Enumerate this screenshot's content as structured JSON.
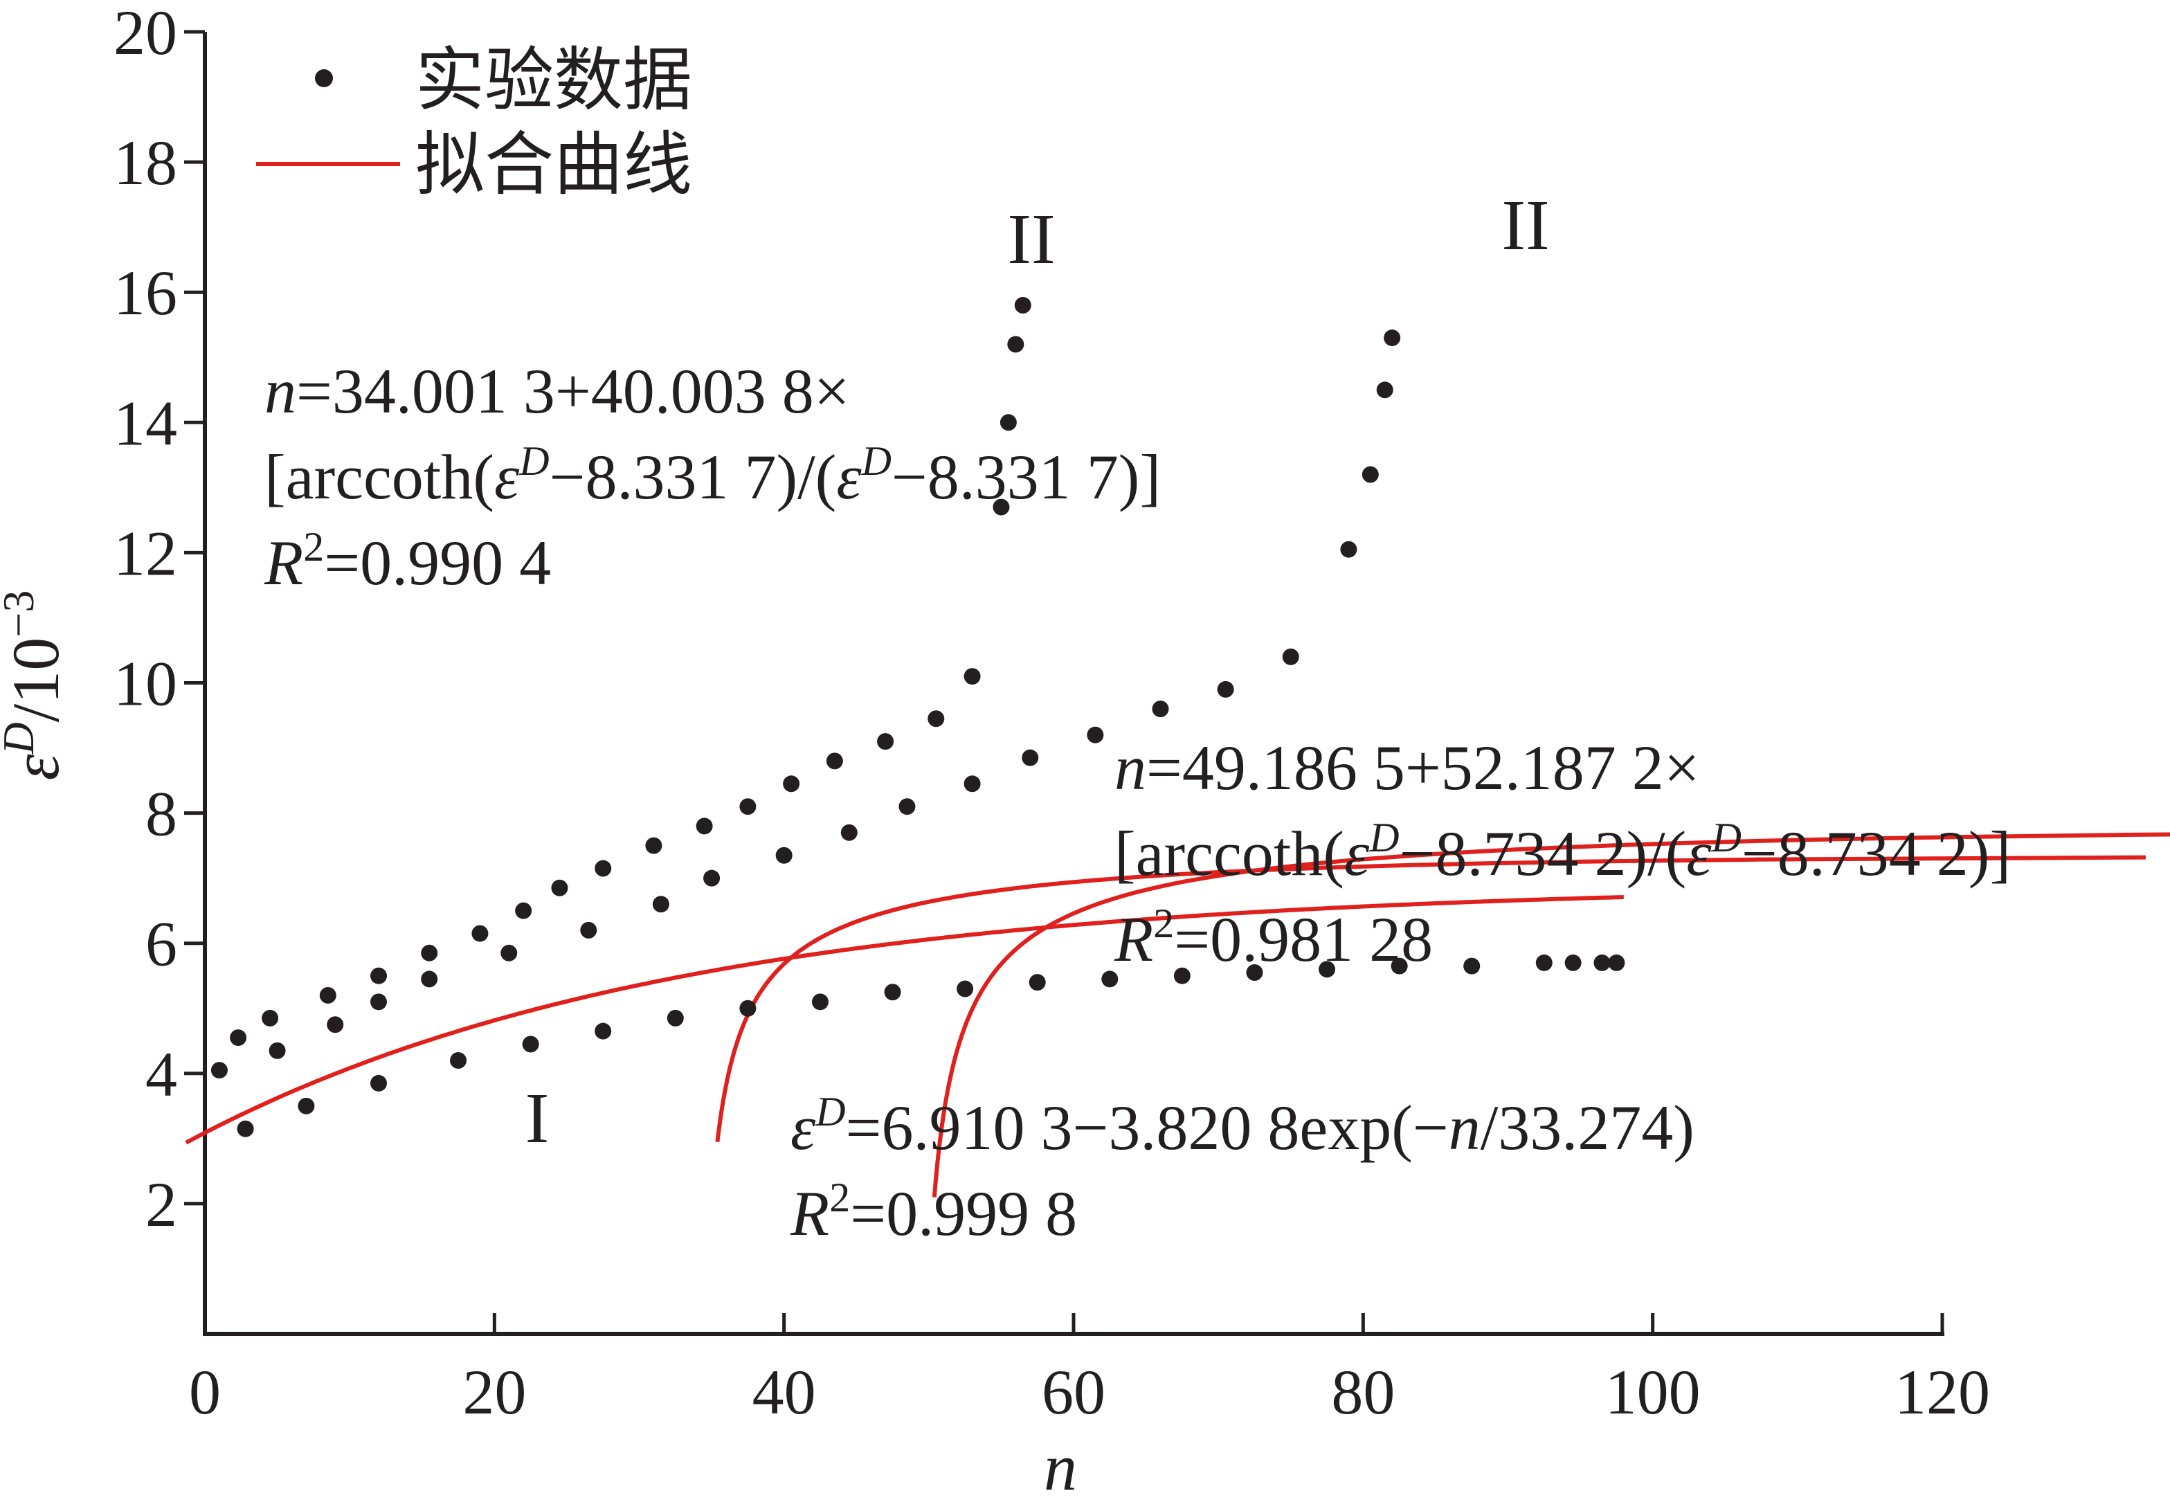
{
  "chart_data": {
    "type": "scatter",
    "xlabel": "n",
    "ylabel": {
      "base": "ε",
      "sup": "D",
      "rest": "/10",
      "rest_sup": "−3"
    },
    "xlim": [
      0,
      120
    ],
    "ylim": [
      0,
      20
    ],
    "xticks": [
      0,
      20,
      40,
      60,
      80,
      100,
      120
    ],
    "yticks": [
      2,
      4,
      6,
      8,
      10,
      12,
      14,
      16,
      18,
      20
    ],
    "grid": false,
    "legend_position": "top-left",
    "legend": {
      "data_label": "实验数据",
      "fit_label": "拟合曲线"
    },
    "colors": {
      "points": "#231f20",
      "fit": "#e0201d",
      "axes": "#231f20"
    },
    "series": [
      {
        "region_label": "II",
        "points": [
          [
            1,
            4.05
          ],
          [
            2.3,
            4.55
          ],
          [
            4.5,
            4.85
          ],
          [
            8.5,
            5.2
          ],
          [
            12,
            5.5
          ],
          [
            15.5,
            5.85
          ],
          [
            19,
            6.15
          ],
          [
            22,
            6.5
          ],
          [
            24.5,
            6.85
          ],
          [
            27.5,
            7.15
          ],
          [
            31,
            7.5
          ],
          [
            34.5,
            7.8
          ],
          [
            37.5,
            8.1
          ],
          [
            40.5,
            8.45
          ],
          [
            43.5,
            8.8
          ],
          [
            47,
            9.1
          ],
          [
            50.5,
            9.45
          ],
          [
            53,
            10.1
          ],
          [
            55,
            12.7
          ],
          [
            55.5,
            14.0
          ],
          [
            56,
            15.2
          ],
          [
            56.5,
            15.8
          ]
        ],
        "fit": {
          "a": 34.0013,
          "b": 40.0038,
          "c": 8.3317,
          "eps_range": [
            2.95,
            15.8
          ]
        }
      },
      {
        "region_label": "II",
        "points": [
          [
            2.8,
            3.15
          ],
          [
            5,
            4.35
          ],
          [
            7,
            3.5
          ],
          [
            9,
            4.75
          ],
          [
            12,
            5.1
          ],
          [
            15.5,
            5.45
          ],
          [
            21,
            5.85
          ],
          [
            26.5,
            6.2
          ],
          [
            31.5,
            6.6
          ],
          [
            35,
            7.0
          ],
          [
            40,
            7.35
          ],
          [
            44.5,
            7.7
          ],
          [
            48.5,
            8.1
          ],
          [
            53,
            8.45
          ],
          [
            57,
            8.85
          ],
          [
            61.5,
            9.2
          ],
          [
            66,
            9.6
          ],
          [
            70.5,
            9.9
          ],
          [
            75,
            10.4
          ],
          [
            79,
            12.05
          ],
          [
            80.5,
            13.2
          ],
          [
            81.5,
            14.5
          ],
          [
            82,
            15.3
          ]
        ],
        "fit": {
          "a": 49.1865,
          "b": 52.1872,
          "c": 8.7342,
          "eps_range": [
            2.1,
            15.2
          ]
        }
      },
      {
        "region_label": "I",
        "points": [
          [
            12,
            3.85
          ],
          [
            17.5,
            4.2
          ],
          [
            22.5,
            4.45
          ],
          [
            27.5,
            4.65
          ],
          [
            32.5,
            4.85
          ],
          [
            37.5,
            5.0
          ],
          [
            42.5,
            5.1
          ],
          [
            47.5,
            5.25
          ],
          [
            52.5,
            5.3
          ],
          [
            57.5,
            5.4
          ],
          [
            62.5,
            5.45
          ],
          [
            67.5,
            5.5
          ],
          [
            72.5,
            5.55
          ],
          [
            77.5,
            5.6
          ],
          [
            82.5,
            5.65
          ],
          [
            87.5,
            5.65
          ],
          [
            92.5,
            5.7
          ],
          [
            94.5,
            5.7
          ],
          [
            96.5,
            5.7
          ],
          [
            97.5,
            5.7
          ]
        ],
        "fit": {
          "A": 6.9103,
          "B": 3.8208,
          "T": 33.274,
          "n_range": [
            -1.3,
            98
          ]
        }
      }
    ],
    "annotations": {
      "eq1_line1": "=34.001 3+40.003 8×",
      "eq1_line2_a": "[arccoth(",
      "eq1_line2_b": "−8.331 7)/(",
      "eq1_line2_c": "−8.331 7)]",
      "eq1_r2": "=0.990 4",
      "eq2_line1": "=49.186 5+52.187 2×",
      "eq2_line2_a": "[arccoth(",
      "eq2_line2_b": "−8.734 2)/(",
      "eq2_line2_c": "−8.734 2)]",
      "eq2_r2": "=0.981 28",
      "eq3_line1": "=6.910 3−3.820 8exp(−",
      "eq3_line1_end": "/33.274)",
      "eq3_r2": "=0.999 8",
      "var_n": "n",
      "var_eps": "ε",
      "var_D": "D",
      "var_R": "R",
      "sup_2": "2"
    }
  }
}
